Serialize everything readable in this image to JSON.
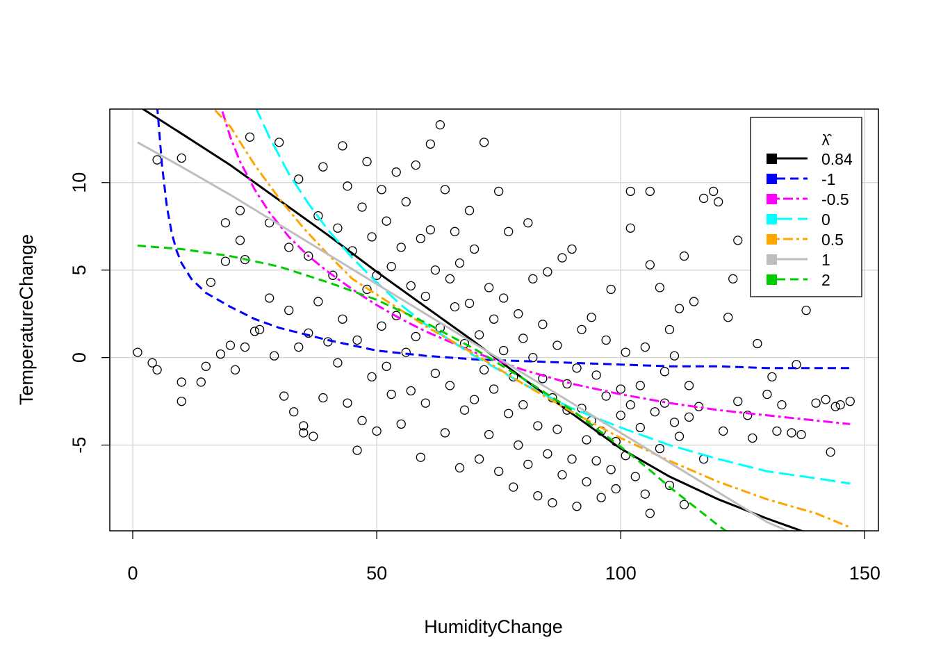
{
  "chart_data": {
    "type": "scatter",
    "title": "",
    "xlabel": "HumidityChange",
    "ylabel": "TemperatureChange",
    "xlim": [
      -4.7,
      152.8
    ],
    "ylim": [
      -9.9,
      14.2
    ],
    "xticks": [
      0,
      50,
      100,
      150
    ],
    "yticks": [
      -5,
      0,
      5,
      10
    ],
    "xtick_labels": [
      "0",
      "50",
      "100",
      "150"
    ],
    "ytick_labels": [
      "-5",
      "0",
      "5",
      "10"
    ],
    "grid": true,
    "legend_placement": "top-right",
    "legend_title": "λ̂",
    "points_style": "open black circles",
    "points_sample": [
      [
        1,
        0.3
      ],
      [
        4,
        -0.3
      ],
      [
        5,
        -0.7
      ],
      [
        5,
        11.3
      ],
      [
        10,
        -1.4
      ],
      [
        10,
        -2.5
      ],
      [
        10,
        11.4
      ],
      [
        14,
        -1.4
      ],
      [
        15,
        -0.5
      ],
      [
        16,
        4.3
      ],
      [
        18,
        0.2
      ],
      [
        19,
        7.7
      ],
      [
        19,
        5.5
      ],
      [
        20,
        0.7
      ],
      [
        21,
        -0.7
      ],
      [
        22,
        6.7
      ],
      [
        22,
        8.4
      ],
      [
        23,
        0.6
      ],
      [
        23,
        5.6
      ],
      [
        24,
        12.6
      ],
      [
        25,
        1.5
      ],
      [
        26,
        1.6
      ],
      [
        28,
        3.4
      ],
      [
        28,
        7.7
      ],
      [
        29,
        0.1
      ],
      [
        30,
        12.3
      ],
      [
        31,
        -2.2
      ],
      [
        32,
        2.7
      ],
      [
        32,
        6.3
      ],
      [
        33,
        -3.1
      ],
      [
        34,
        10.2
      ],
      [
        34,
        0.6
      ],
      [
        35,
        -3.9
      ],
      [
        35,
        -4.3
      ],
      [
        36,
        1.4
      ],
      [
        36,
        5.8
      ],
      [
        37,
        -4.5
      ],
      [
        38,
        8.1
      ],
      [
        38,
        3.2
      ],
      [
        39,
        -2.3
      ],
      [
        39,
        10.9
      ],
      [
        40,
        0.9
      ],
      [
        41,
        4.7
      ],
      [
        42,
        7.4
      ],
      [
        42,
        -0.3
      ],
      [
        43,
        12.1
      ],
      [
        43,
        2.2
      ],
      [
        44,
        -2.6
      ],
      [
        44,
        9.8
      ],
      [
        45,
        6.1
      ],
      [
        46,
        1.0
      ],
      [
        46,
        -5.3
      ],
      [
        47,
        8.6
      ],
      [
        47,
        -3.6
      ],
      [
        48,
        3.9
      ],
      [
        48,
        11.2
      ],
      [
        49,
        -1.1
      ],
      [
        49,
        6.9
      ],
      [
        50,
        -4.2
      ],
      [
        50,
        4.7
      ],
      [
        51,
        9.6
      ],
      [
        51,
        1.8
      ],
      [
        52,
        -0.5
      ],
      [
        52,
        7.8
      ],
      [
        53,
        -2.1
      ],
      [
        53,
        5.2
      ],
      [
        54,
        10.6
      ],
      [
        54,
        2.4
      ],
      [
        55,
        -3.8
      ],
      [
        55,
        6.3
      ],
      [
        56,
        0.3
      ],
      [
        56,
        8.9
      ],
      [
        57,
        -1.9
      ],
      [
        57,
        4.1
      ],
      [
        58,
        11.0
      ],
      [
        58,
        1.2
      ],
      [
        59,
        -5.7
      ],
      [
        59,
        6.8
      ],
      [
        60,
        3.5
      ],
      [
        60,
        -2.6
      ],
      [
        61,
        12.2
      ],
      [
        61,
        7.3
      ],
      [
        62,
        -0.9
      ],
      [
        62,
        5.0
      ],
      [
        63,
        13.3
      ],
      [
        63,
        1.7
      ],
      [
        64,
        -4.3
      ],
      [
        64,
        9.6
      ],
      [
        65,
        4.5
      ],
      [
        65,
        -1.6
      ],
      [
        66,
        7.2
      ],
      [
        66,
        2.9
      ],
      [
        67,
        -6.3
      ],
      [
        67,
        5.4
      ],
      [
        68,
        0.8
      ],
      [
        68,
        -3.0
      ],
      [
        69,
        8.4
      ],
      [
        69,
        3.1
      ],
      [
        70,
        -2.4
      ],
      [
        70,
        6.2
      ],
      [
        71,
        -5.8
      ],
      [
        71,
        1.3
      ],
      [
        72,
        12.3
      ],
      [
        72,
        -0.7
      ],
      [
        73,
        4.0
      ],
      [
        73,
        -4.4
      ],
      [
        74,
        2.2
      ],
      [
        74,
        -1.8
      ],
      [
        75,
        9.5
      ],
      [
        75,
        -6.5
      ],
      [
        76,
        0.4
      ],
      [
        76,
        3.4
      ],
      [
        77,
        -3.2
      ],
      [
        77,
        7.2
      ],
      [
        78,
        -1.1
      ],
      [
        78,
        -7.4
      ],
      [
        79,
        2.5
      ],
      [
        79,
        -5.0
      ],
      [
        80,
        1.1
      ],
      [
        80,
        -2.7
      ],
      [
        81,
        7.7
      ],
      [
        81,
        -6.1
      ],
      [
        82,
        0.0
      ],
      [
        82,
        4.5
      ],
      [
        83,
        -3.9
      ],
      [
        83,
        -7.9
      ],
      [
        84,
        -1.2
      ],
      [
        84,
        1.9
      ],
      [
        85,
        4.9
      ],
      [
        85,
        -5.5
      ],
      [
        86,
        -2.3
      ],
      [
        86,
        -8.3
      ],
      [
        87,
        0.7
      ],
      [
        87,
        -4.1
      ],
      [
        88,
        5.7
      ],
      [
        88,
        -6.7
      ],
      [
        89,
        -1.5
      ],
      [
        89,
        -3.0
      ],
      [
        90,
        6.2
      ],
      [
        90,
        -5.8
      ],
      [
        91,
        -0.6
      ],
      [
        91,
        -8.5
      ],
      [
        92,
        -2.9
      ],
      [
        92,
        1.6
      ],
      [
        93,
        -4.7
      ],
      [
        93,
        -7.1
      ],
      [
        94,
        2.3
      ],
      [
        94,
        -3.6
      ],
      [
        95,
        -5.9
      ],
      [
        95,
        -1.0
      ],
      [
        96,
        -8.0
      ],
      [
        96,
        -4.2
      ],
      [
        97,
        1.0
      ],
      [
        97,
        -2.2
      ],
      [
        98,
        -6.4
      ],
      [
        98,
        3.9
      ],
      [
        99,
        -4.8
      ],
      [
        99,
        -7.5
      ],
      [
        100,
        -1.8
      ],
      [
        100,
        -3.3
      ],
      [
        101,
        -5.6
      ],
      [
        101,
        0.3
      ],
      [
        102,
        9.5
      ],
      [
        102,
        7.4
      ],
      [
        102,
        -2.7
      ],
      [
        103,
        -6.8
      ],
      [
        104,
        -1.6
      ],
      [
        104,
        -4.0
      ],
      [
        105,
        -7.8
      ],
      [
        105,
        0.6
      ],
      [
        106,
        5.3
      ],
      [
        106,
        9.5
      ],
      [
        106,
        -8.9
      ],
      [
        107,
        -3.1
      ],
      [
        108,
        4.0
      ],
      [
        108,
        -5.2
      ],
      [
        109,
        -2.6
      ],
      [
        109,
        -0.8
      ],
      [
        110,
        1.6
      ],
      [
        110,
        -7.3
      ],
      [
        111,
        -3.7
      ],
      [
        111,
        0.1
      ],
      [
        112,
        2.8
      ],
      [
        112,
        -4.5
      ],
      [
        113,
        5.8
      ],
      [
        113,
        -8.4
      ],
      [
        114,
        -1.6
      ],
      [
        114,
        -3.4
      ],
      [
        115,
        3.2
      ],
      [
        116,
        -2.8
      ],
      [
        117,
        -5.8
      ],
      [
        117,
        9.1
      ],
      [
        119,
        9.5
      ],
      [
        120,
        8.9
      ],
      [
        121,
        -4.2
      ],
      [
        122,
        2.3
      ],
      [
        123,
        4.5
      ],
      [
        124,
        6.7
      ],
      [
        124,
        -2.5
      ],
      [
        126,
        -3.3
      ],
      [
        127,
        -4.6
      ],
      [
        128,
        0.8
      ],
      [
        130,
        -2.1
      ],
      [
        131,
        -1.1
      ],
      [
        132,
        -4.2
      ],
      [
        133,
        -2.7
      ],
      [
        135,
        -4.3
      ],
      [
        136,
        -0.4
      ],
      [
        137,
        -4.4
      ],
      [
        138,
        2.7
      ],
      [
        140,
        -2.6
      ],
      [
        142,
        -2.4
      ],
      [
        143,
        -5.4
      ],
      [
        144,
        -2.8
      ],
      [
        145,
        -2.7
      ],
      [
        147,
        -2.5
      ]
    ],
    "series": [
      {
        "name": "0.84",
        "color": "#000000",
        "dash": "solid",
        "x": [
          1,
          10,
          20,
          30,
          40,
          50,
          60,
          70,
          80,
          90,
          100,
          110,
          120,
          130,
          138
        ],
        "y": [
          14.4,
          12.8,
          11.0,
          9.0,
          7.0,
          4.9,
          2.9,
          0.9,
          -1.2,
          -3.2,
          -5.2,
          -6.8,
          -8.1,
          -9.2,
          -10.0
        ]
      },
      {
        "name": "-1",
        "color": "#0000ff",
        "dash": "dashed",
        "x": [
          5,
          6,
          7,
          8,
          9,
          10,
          12,
          15,
          20,
          25,
          30,
          40,
          50,
          60,
          70,
          80,
          90,
          100,
          110,
          120,
          130,
          140,
          147
        ],
        "y": [
          14.4,
          11.0,
          8.6,
          7.1,
          6.1,
          5.4,
          4.5,
          3.7,
          2.9,
          2.2,
          1.7,
          1.0,
          0.4,
          0.1,
          -0.1,
          -0.2,
          -0.3,
          -0.4,
          -0.5,
          -0.5,
          -0.6,
          -0.6,
          -0.6
        ]
      },
      {
        "name": "-0.5",
        "color": "#ff00ff",
        "dash": "dashdot",
        "x": [
          18,
          20,
          22,
          25,
          28,
          32,
          36,
          40,
          45,
          50,
          55,
          60,
          70,
          80,
          90,
          100,
          110,
          120,
          130,
          140,
          147
        ],
        "y": [
          14.4,
          12.6,
          11.2,
          9.6,
          8.3,
          6.9,
          5.8,
          4.9,
          3.9,
          3.0,
          2.2,
          1.5,
          0.3,
          -0.7,
          -1.5,
          -2.1,
          -2.6,
          -3.0,
          -3.3,
          -3.6,
          -3.8
        ]
      },
      {
        "name": "0",
        "color": "#00ffff",
        "dash": "longdash",
        "x": [
          25,
          28,
          32,
          36,
          40,
          45,
          50,
          55,
          60,
          70,
          80,
          90,
          100,
          110,
          120,
          130,
          140,
          147
        ],
        "y": [
          14.4,
          12.6,
          10.5,
          8.8,
          7.3,
          5.7,
          4.3,
          3.0,
          1.9,
          0.1,
          -1.5,
          -2.9,
          -4.0,
          -5.0,
          -5.8,
          -6.5,
          -6.9,
          -7.2
        ]
      },
      {
        "name": "0.5",
        "color": "#ffa500",
        "dash": "dashdot",
        "x": [
          16,
          20,
          25,
          30,
          35,
          40,
          45,
          50,
          60,
          70,
          80,
          90,
          100,
          110,
          120,
          130,
          140,
          147
        ],
        "y": [
          14.4,
          13.2,
          11.0,
          9.1,
          7.4,
          5.9,
          4.5,
          3.6,
          1.8,
          0.2,
          -1.5,
          -3.1,
          -4.6,
          -5.9,
          -7.1,
          -8.1,
          -8.9,
          -9.7
        ]
      },
      {
        "name": "1",
        "color": "#bebebe",
        "dash": "solid",
        "x": [
          1,
          10,
          20,
          30,
          40,
          50,
          60,
          70,
          80,
          90,
          100,
          110,
          120,
          130,
          135
        ],
        "y": [
          12.3,
          10.9,
          9.3,
          7.6,
          5.9,
          4.2,
          2.5,
          0.8,
          -0.9,
          -2.6,
          -4.3,
          -6.0,
          -7.7,
          -9.4,
          -10.0
        ]
      },
      {
        "name": "2",
        "color": "#00cd00",
        "dash": "dashed",
        "x": [
          1,
          10,
          20,
          30,
          40,
          50,
          60,
          70,
          80,
          90,
          100,
          105,
          110,
          115,
          120,
          122
        ],
        "y": [
          6.4,
          6.2,
          5.8,
          5.2,
          4.3,
          3.3,
          2.0,
          0.5,
          -1.2,
          -3.0,
          -5.1,
          -6.2,
          -7.4,
          -8.5,
          -9.6,
          -10.0
        ]
      }
    ]
  }
}
